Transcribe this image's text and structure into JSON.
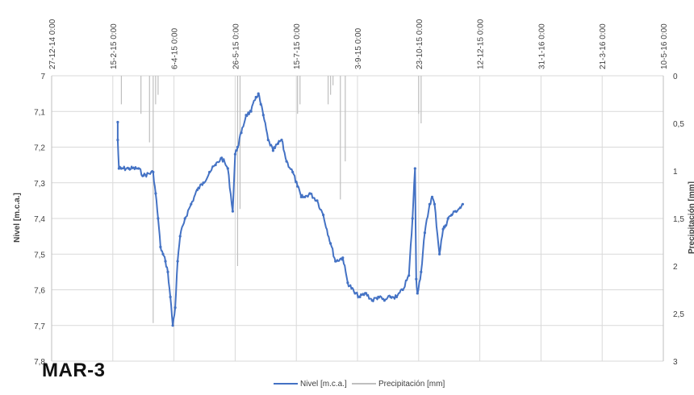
{
  "chart_label": "MAR-3",
  "chart_data": {
    "type": "line",
    "title": "",
    "xlabel": "",
    "ylabel": "Nivel [m.c.a.]",
    "y2label": "Precipitación [mm]",
    "ylim": [
      7.8,
      7.0
    ],
    "y_reversed": true,
    "y2lim": [
      3,
      0
    ],
    "y2_reversed": true,
    "yticks": [
      "7",
      "7,1",
      "7,2",
      "7,3",
      "7,4",
      "7,5",
      "7,6",
      "7,7",
      "7,8"
    ],
    "y2ticks": [
      "0",
      "0,5",
      "1",
      "1,5",
      "2",
      "2,5",
      "3"
    ],
    "xticks": [
      "27-12-14 0:00",
      "15-2-15 0:00",
      "6-4-15 0:00",
      "26-5-15 0:00",
      "15-7-15 0:00",
      "3-9-15 0:00",
      "23-10-15 0:00",
      "12-12-15 0:00",
      "31-1-16 0:00",
      "21-3-16 0:00",
      "10-5-16 0:00"
    ],
    "grid": true,
    "legend_position": "bottom",
    "series": [
      {
        "name": "Nivel [m.c.a.]",
        "color": "#4472C4",
        "axis": "left",
        "x": [
          "2015-02-19",
          "2015-02-19",
          "2015-02-20",
          "2015-02-22",
          "2015-02-28",
          "2015-03-08",
          "2015-03-12",
          "2015-03-20",
          "2015-03-22",
          "2015-03-24",
          "2015-03-26",
          "2015-03-28",
          "2015-03-30",
          "2015-04-01",
          "2015-04-03",
          "2015-04-05",
          "2015-04-07",
          "2015-04-09",
          "2015-04-11",
          "2015-04-15",
          "2015-04-20",
          "2015-04-25",
          "2015-04-30",
          "2015-05-05",
          "2015-05-10",
          "2015-05-15",
          "2015-05-20",
          "2015-05-24",
          "2015-05-26",
          "2015-05-28",
          "2015-05-31",
          "2015-06-04",
          "2015-06-08",
          "2015-06-12",
          "2015-06-14",
          "2015-06-16",
          "2015-06-18",
          "2015-06-22",
          "2015-06-26",
          "2015-06-30",
          "2015-07-03",
          "2015-07-07",
          "2015-07-12",
          "2015-07-16",
          "2015-07-19",
          "2015-07-22",
          "2015-07-26",
          "2015-08-01",
          "2015-08-06",
          "2015-08-12",
          "2015-08-16",
          "2015-08-22",
          "2015-08-26",
          "2015-09-01",
          "2015-09-05",
          "2015-09-10",
          "2015-09-15",
          "2015-09-20",
          "2015-09-25",
          "2015-09-30",
          "2015-10-05",
          "2015-10-10",
          "2015-10-15",
          "2015-10-18",
          "2015-10-20",
          "2015-10-21",
          "2015-10-22",
          "2015-10-25",
          "2015-10-28",
          "2015-11-01",
          "2015-11-03",
          "2015-11-05",
          "2015-11-09",
          "2015-11-12",
          "2015-11-14",
          "2015-11-16",
          "2015-11-19",
          "2015-11-22",
          "2015-11-26",
          "2015-11-28"
        ],
        "y": [
          7.13,
          7.18,
          7.26,
          7.26,
          7.26,
          7.26,
          7.28,
          7.27,
          7.33,
          7.4,
          7.48,
          7.5,
          7.52,
          7.55,
          7.62,
          7.7,
          7.65,
          7.52,
          7.45,
          7.4,
          7.36,
          7.32,
          7.3,
          7.27,
          7.25,
          7.23,
          7.26,
          7.38,
          7.22,
          7.2,
          7.16,
          7.11,
          7.1,
          7.06,
          7.05,
          7.08,
          7.11,
          7.18,
          7.21,
          7.19,
          7.18,
          7.24,
          7.27,
          7.31,
          7.34,
          7.34,
          7.33,
          7.35,
          7.39,
          7.47,
          7.52,
          7.51,
          7.58,
          7.61,
          7.62,
          7.61,
          7.63,
          7.62,
          7.63,
          7.62,
          7.62,
          7.6,
          7.56,
          7.4,
          7.26,
          7.57,
          7.61,
          7.55,
          7.44,
          7.36,
          7.34,
          7.36,
          7.5,
          7.43,
          7.42,
          7.4,
          7.39,
          7.38,
          7.37,
          7.36
        ]
      },
      {
        "name": "Precipitación [mm]",
        "color": "#BFBFBF",
        "axis": "right",
        "x": [
          "2015-02-22",
          "2015-03-10",
          "2015-03-17",
          "2015-03-20",
          "2015-03-22",
          "2015-03-24",
          "2015-05-28",
          "2015-05-30",
          "2015-07-16",
          "2015-07-18",
          "2015-08-10",
          "2015-08-12",
          "2015-08-14",
          "2015-08-20",
          "2015-08-24",
          "2015-10-23",
          "2015-10-25"
        ],
        "y": [
          0.3,
          0.4,
          0.7,
          2.6,
          0.3,
          0.2,
          2.0,
          1.4,
          0.4,
          0.3,
          0.3,
          0.2,
          0.1,
          1.3,
          0.9,
          0.4,
          0.5
        ]
      }
    ]
  }
}
